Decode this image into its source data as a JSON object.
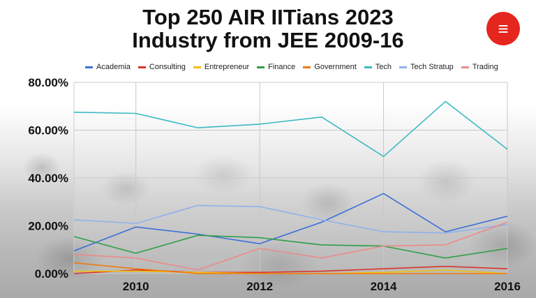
{
  "header": {
    "title_line1": "Top 250 AIR IITians 2023",
    "title_line2": "Industry from JEE 2009-16",
    "logo_name": "indian-express-logo-icon",
    "logo_color": "#e5261f"
  },
  "chart_data": {
    "type": "line",
    "title": "Top 250 AIR IITians 2023 Industry from JEE 2009-16",
    "xlabel": "",
    "ylabel": "",
    "x": [
      2009,
      2010,
      2011,
      2012,
      2013,
      2014,
      2015,
      2016
    ],
    "xticks": [
      2010,
      2012,
      2014,
      2016
    ],
    "xtick_labels": [
      "2010",
      "2012",
      "2014",
      "2016"
    ],
    "xlim": [
      2009,
      2016
    ],
    "ylim": [
      0,
      80
    ],
    "yticks": [
      0,
      20,
      40,
      60,
      80
    ],
    "ytick_labels": [
      "0.00%",
      "20.00%",
      "40.00%",
      "60.00%",
      "80.00%"
    ],
    "grid": true,
    "legend_position": "top",
    "series": [
      {
        "name": "Academia",
        "color": "#3b6fd8",
        "values": [
          9.5,
          19.5,
          16.5,
          12.5,
          21.5,
          33.5,
          17.5,
          24
        ]
      },
      {
        "name": "Consulting",
        "color": "#d9332b",
        "values": [
          0,
          1.5,
          0.5,
          0.5,
          1,
          2,
          3,
          2
        ]
      },
      {
        "name": "Entrepreneur",
        "color": "#f2c10f",
        "values": [
          1,
          1,
          0.5,
          0,
          0,
          0.5,
          1.5,
          0
        ]
      },
      {
        "name": "Finance",
        "color": "#2e9e48",
        "values": [
          15.5,
          8.5,
          16,
          15,
          12,
          11.5,
          6.5,
          10.5
        ]
      },
      {
        "name": "Government",
        "color": "#f07a10",
        "values": [
          4.5,
          2,
          0,
          0,
          0,
          0,
          0,
          0
        ]
      },
      {
        "name": "Tech",
        "color": "#3cb9c4",
        "values": [
          67.5,
          67,
          61,
          62.5,
          65.5,
          49,
          72,
          52
        ]
      },
      {
        "name": "Tech Stratup",
        "color": "#8fb1ec",
        "values": [
          22.5,
          21,
          28.5,
          28,
          22.5,
          17.5,
          17,
          20.5
        ]
      },
      {
        "name": "Trading",
        "color": "#ec8a8a",
        "values": [
          8,
          6.5,
          1.5,
          10.5,
          6.5,
          11.5,
          12,
          21.5
        ]
      }
    ]
  }
}
